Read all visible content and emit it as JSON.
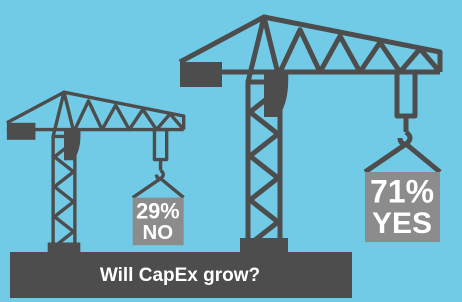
{
  "chart_data": {
    "type": "pictogram",
    "title": "Will CapEx grow?",
    "categories": [
      "NO",
      "YES"
    ],
    "values": [
      29,
      71
    ],
    "value_labels": [
      "29%",
      "71%"
    ],
    "color": "#8c8c8c"
  }
}
